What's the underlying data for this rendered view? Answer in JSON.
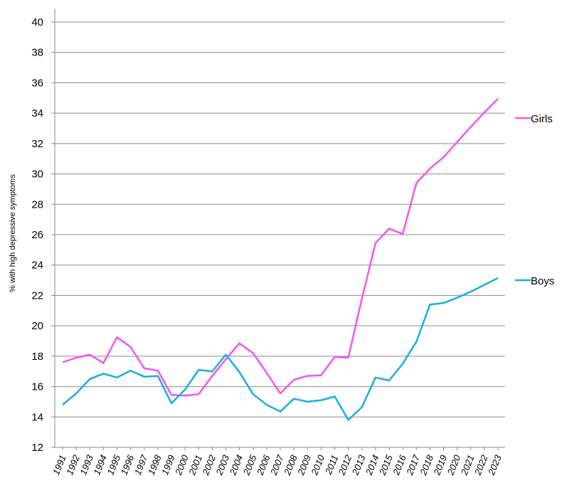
{
  "chart_data": {
    "type": "line",
    "title": "",
    "xlabel": "",
    "ylabel": "% with high depressive symptoms",
    "ylim": [
      12,
      40
    ],
    "yticks": [
      12,
      14,
      16,
      18,
      20,
      22,
      24,
      26,
      28,
      30,
      32,
      34,
      36,
      38,
      40
    ],
    "grid": "horizontal",
    "legend": "right",
    "x": [
      "1991",
      "1992",
      "1993",
      "1994",
      "1995",
      "1996",
      "1997",
      "1998",
      "1999",
      "2000",
      "2001",
      "2002",
      "2003",
      "2004",
      "2005",
      "2006",
      "2007",
      "2008",
      "2009",
      "2010",
      "2011",
      "2012",
      "2013",
      "2014",
      "2015",
      "2016",
      "2017",
      "2018",
      "2019",
      "2020",
      "2021",
      "2022",
      "2023"
    ],
    "series": [
      {
        "name": "Girls",
        "color": "#f553f5",
        "values": [
          17.6,
          17.9,
          18.1,
          17.55,
          19.25,
          18.6,
          17.2,
          17.05,
          15.45,
          15.4,
          15.5,
          16.7,
          17.8,
          18.85,
          18.2,
          16.9,
          15.55,
          16.45,
          16.7,
          16.75,
          17.95,
          17.9,
          21.8,
          25.45,
          26.4,
          26.05,
          29.4,
          30.35,
          31.1,
          32.1,
          33.1,
          34.05,
          34.95
        ]
      },
      {
        "name": "Boys",
        "color": "#17afe6",
        "values": [
          14.8,
          15.55,
          16.5,
          16.85,
          16.6,
          17.05,
          16.65,
          16.7,
          14.9,
          15.8,
          17.1,
          17.0,
          18.1,
          16.95,
          15.5,
          14.8,
          14.35,
          15.2,
          15.0,
          15.1,
          15.35,
          13.8,
          14.65,
          16.6,
          16.4,
          17.5,
          18.95,
          21.4,
          21.5,
          21.85,
          22.25,
          22.7,
          23.15
        ]
      }
    ]
  }
}
